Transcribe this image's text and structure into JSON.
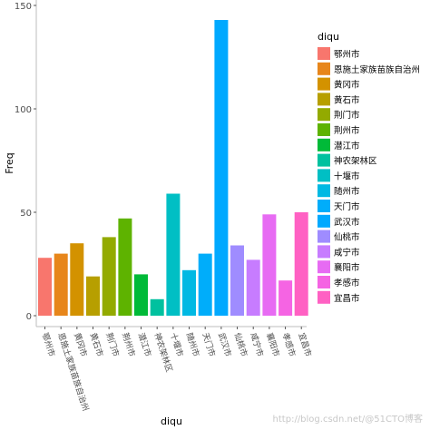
{
  "chart_data": {
    "type": "bar",
    "xlabel": "diqu",
    "ylabel": "Freq",
    "ylim": [
      0,
      150
    ],
    "yticks": [
      0,
      50,
      100,
      150
    ],
    "legend_title": "diqu",
    "legend_position": "right",
    "grid": false,
    "categories": [
      "鄂州市",
      "恩施土家族苗族自治州",
      "黄冈市",
      "黄石市",
      "荆门市",
      "荆州市",
      "潜江市",
      "神农架林区",
      "十堰市",
      "随州市",
      "天门市",
      "武汉市",
      "仙桃市",
      "咸宁市",
      "襄阳市",
      "孝感市",
      "宜昌市"
    ],
    "values": [
      28,
      30,
      35,
      19,
      38,
      47,
      20,
      8,
      59,
      22,
      30,
      143,
      34,
      27,
      49,
      17,
      50
    ],
    "colors": [
      "#F8766D",
      "#E7861B",
      "#D39200",
      "#B79F00",
      "#93AA00",
      "#5EB300",
      "#00BA38",
      "#00C19F",
      "#00BFC4",
      "#00B9E3",
      "#00ADFA",
      "#00A9FF",
      "#9F8CFF",
      "#C77CFF",
      "#E76BF3",
      "#F564E3",
      "#FF61C3"
    ]
  },
  "watermark": "http://blog.csdn.net/@51CTO博客"
}
